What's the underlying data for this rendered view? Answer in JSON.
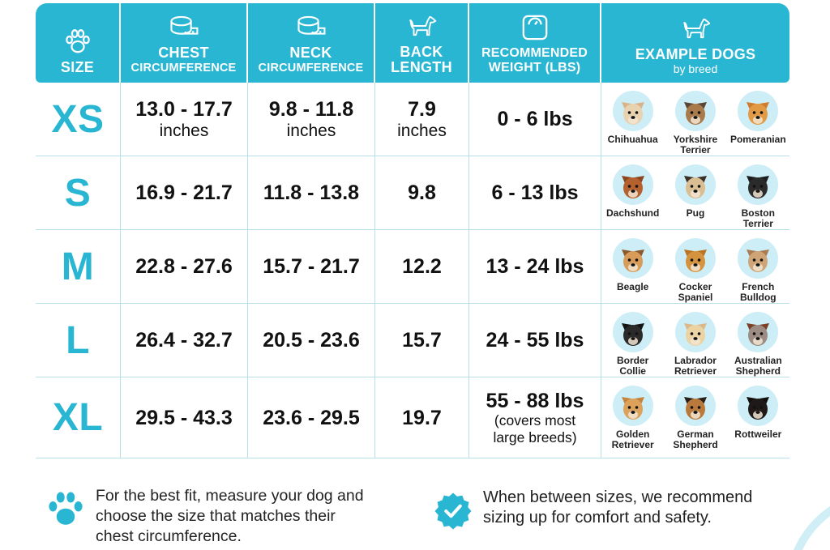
{
  "header": {
    "columns": [
      {
        "icon": "paw-icon",
        "line1": "SIZE",
        "line2": ""
      },
      {
        "icon": "measuring-tape-icon",
        "line1": "CHEST",
        "line2": "CIRCUMFERENCE"
      },
      {
        "icon": "measuring-tape-icon",
        "line1": "NECK",
        "line2": "CIRCUMFERENCE"
      },
      {
        "icon": "dog-silhouette-icon",
        "line1": "BACK",
        "line2": "LENGTH"
      },
      {
        "icon": "scale-icon",
        "line1": "RECOMMENDED",
        "line2": "WEIGHT (LBS)"
      },
      {
        "icon": "dog-silhouette-icon",
        "line1": "EXAMPLE DOGS",
        "line2": "by breed"
      }
    ]
  },
  "rows": [
    {
      "size": "XS",
      "chest": "13.0 - 17.7",
      "chest_unit": "inches",
      "neck": "9.8 - 11.8",
      "neck_unit": "inches",
      "back": "7.9",
      "back_unit": "inches",
      "weight": "0 - 6 lbs",
      "weight_note": "",
      "dogs": [
        {
          "line1": "Chihuahua",
          "line2": "",
          "fur": "#e9d2b0",
          "ear": "#d9b48a"
        },
        {
          "line1": "Yorkshire",
          "line2": "Terrier",
          "fur": "#a87a4c",
          "ear": "#5b4636"
        },
        {
          "line1": "Pomeranian",
          "line2": "",
          "fur": "#e39a45",
          "ear": "#cf7d2c"
        }
      ]
    },
    {
      "size": "S",
      "chest": "16.9 - 21.7",
      "chest_unit": "",
      "neck": "11.8 - 13.8",
      "neck_unit": "",
      "back": "9.8",
      "back_unit": "",
      "weight": "6 - 13 lbs",
      "weight_note": "",
      "dogs": [
        {
          "line1": "Dachshund",
          "line2": "",
          "fur": "#b5612f",
          "ear": "#8c4521"
        },
        {
          "line1": "Pug",
          "line2": "",
          "fur": "#d9bd93",
          "ear": "#3b3028"
        },
        {
          "line1": "Boston Terrier",
          "line2": "",
          "fur": "#2b2b2b",
          "ear": "#1d1d1d"
        }
      ]
    },
    {
      "size": "M",
      "chest": "22.8 - 27.6",
      "chest_unit": "",
      "neck": "15.7 - 21.7",
      "neck_unit": "",
      "back": "12.2",
      "back_unit": "",
      "weight": "13 - 24 lbs",
      "weight_note": "",
      "dogs": [
        {
          "line1": "Beagle",
          "line2": "",
          "fur": "#d79b5a",
          "ear": "#8a5a2e"
        },
        {
          "line1": "Cocker",
          "line2": "Spaniel",
          "fur": "#d5923f",
          "ear": "#b97524"
        },
        {
          "line1": "French",
          "line2": "Bulldog",
          "fur": "#cfa577",
          "ear": "#a97d52"
        }
      ]
    },
    {
      "size": "L",
      "chest": "26.4 - 32.7",
      "chest_unit": "",
      "neck": "20.5 - 23.6",
      "neck_unit": "",
      "back": "15.7",
      "back_unit": "",
      "weight": "24 - 55 lbs",
      "weight_note": "",
      "dogs": [
        {
          "line1": "Border",
          "line2": "Collie",
          "fur": "#2a2a2a",
          "ear": "#141414"
        },
        {
          "line1": "Labrador",
          "line2": "Retriever",
          "fur": "#ecd3a4",
          "ear": "#d9b98a"
        },
        {
          "line1": "Australian",
          "line2": "Shepherd",
          "fur": "#9c8c84",
          "ear": "#7a3f24"
        }
      ]
    },
    {
      "size": "XL",
      "chest": "29.5 - 43.3",
      "chest_unit": "",
      "neck": "23.6 - 29.5",
      "neck_unit": "",
      "back": "19.7",
      "back_unit": "",
      "weight": "55 - 88 lbs",
      "weight_note": "(covers most large breeds)",
      "weight_note1": "(covers most",
      "weight_note2": "large breeds)",
      "dogs": [
        {
          "line1": "Golden",
          "line2": "Retriever",
          "fur": "#dca25c",
          "ear": "#c4843e"
        },
        {
          "line1": "German",
          "line2": "Shepherd",
          "fur": "#b9793c",
          "ear": "#2a2018"
        },
        {
          "line1": "Rottweiler",
          "line2": "",
          "fur": "#1f1a17",
          "ear": "#120f0d"
        }
      ]
    }
  ],
  "footer": {
    "tip1_line1": "For the best fit, measure your dog and",
    "tip1_line2": "choose the size that matches their",
    "tip1_line3": "chest circumference.",
    "tip2_line1": "When between sizes, we recommend",
    "tip2_line2": "sizing up for comfort and safety.",
    "tip1_icon": "paw-icon",
    "tip2_icon": "checkmark-badge-icon"
  },
  "colors": {
    "accent": "#29b6d3",
    "grid": "#b9dfe8",
    "text": "#111111"
  }
}
